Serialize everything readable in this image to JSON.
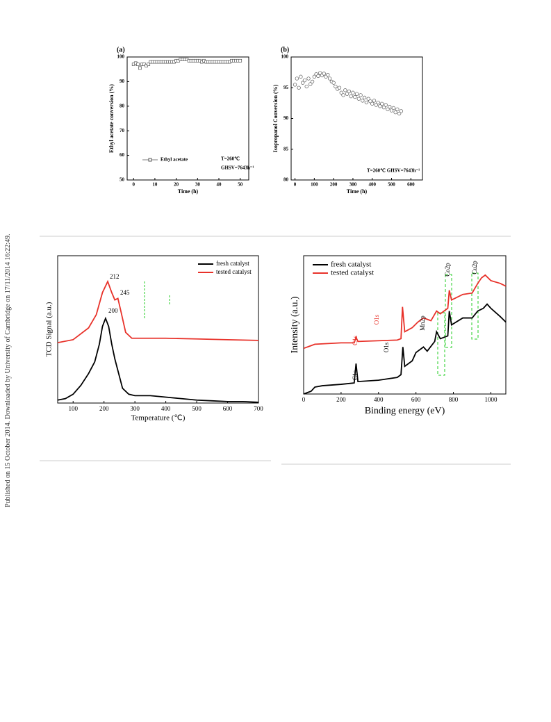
{
  "side_note": "Published on 15 October 2014. Downloaded by University of Cambridge on 17/11/2014 16:22:49.",
  "chart_data": [
    {
      "type": "line",
      "panel_label": "(a)",
      "x_label": "Time (h)",
      "y_label": "Ethyl acetate conversion (%)",
      "xlim": [
        -3,
        54
      ],
      "xticks": [
        0,
        10,
        20,
        30,
        40,
        50
      ],
      "ylim": [
        50,
        100
      ],
      "yticks": [
        50,
        60,
        70,
        80,
        90,
        100
      ],
      "marker": "square",
      "legend": "bottom-left",
      "annotations": [
        "T=260℃",
        "GHSV=7643h⁻¹"
      ],
      "series": [
        {
          "name": "Ethyl acetate",
          "color": "#555",
          "x": [
            0,
            1,
            2,
            3,
            4,
            5,
            6,
            7,
            8,
            9,
            10,
            11,
            12,
            13,
            14,
            15,
            16,
            17,
            18,
            19,
            20,
            21,
            22,
            23,
            24,
            25,
            26,
            27,
            28,
            29,
            30,
            31,
            32,
            33,
            34,
            35,
            36,
            37,
            38,
            39,
            40,
            41,
            42,
            43,
            44,
            45,
            46,
            47,
            48,
            49,
            50
          ],
          "values": [
            97,
            97.5,
            97,
            95.5,
            97,
            97,
            96.5,
            97,
            98,
            98,
            98,
            98,
            98,
            98,
            98,
            98,
            98,
            98,
            98,
            98,
            98.5,
            98.5,
            99,
            99,
            99,
            99,
            98.5,
            98.5,
            98.5,
            98.5,
            98.5,
            98.5,
            98,
            98.5,
            98,
            98,
            98,
            98,
            98,
            98,
            98,
            98,
            98,
            98,
            98,
            98,
            98.5,
            98.5,
            98.5,
            98.5,
            98.5
          ]
        }
      ]
    },
    {
      "type": "scatter",
      "panel_label": "(b)",
      "x_label": "Time (h)",
      "y_label": "Isopropanol Conversion (%)",
      "xlim": [
        -20,
        660
      ],
      "xticks": [
        0,
        100,
        200,
        300,
        400,
        500,
        600
      ],
      "ylim": [
        80,
        100
      ],
      "yticks": [
        80,
        85,
        90,
        95,
        100
      ],
      "marker": "circle",
      "annotations": [
        "T=260℃ GHSV=7643h⁻¹"
      ],
      "series": [
        {
          "color": "#555",
          "x": [
            0,
            10,
            20,
            30,
            40,
            50,
            60,
            70,
            80,
            90,
            100,
            110,
            120,
            130,
            140,
            150,
            160,
            170,
            180,
            190,
            200,
            210,
            220,
            230,
            240,
            250,
            260,
            270,
            280,
            290,
            300,
            310,
            320,
            330,
            340,
            350,
            360,
            370,
            380,
            390,
            400,
            410,
            420,
            430,
            440,
            450,
            460,
            470,
            480,
            490,
            500,
            510,
            520,
            530,
            540,
            550
          ],
          "values": [
            95.5,
            96.5,
            95,
            96.8,
            95.8,
            96.2,
            95.2,
            96.5,
            95.6,
            96.0,
            96.8,
            97.2,
            96.9,
            97.4,
            97.0,
            97.3,
            96.8,
            97.1,
            96.5,
            96.0,
            95.8,
            95.2,
            94.8,
            95.0,
            94.2,
            93.8,
            94.6,
            94.0,
            94.4,
            93.6,
            94.2,
            93.5,
            94.0,
            93.2,
            93.8,
            92.9,
            93.4,
            92.6,
            93.2,
            92.8,
            92.4,
            92.9,
            92.2,
            92.6,
            92.0,
            92.4,
            91.8,
            92.2,
            91.5,
            91.9,
            91.3,
            91.7,
            91.0,
            91.5,
            90.8,
            91.2
          ]
        }
      ]
    },
    {
      "type": "line",
      "x_label": "Temperature (℃)",
      "y_label": "TCD Signal (a.u.)",
      "xlim": [
        50,
        700
      ],
      "xticks": [
        100,
        200,
        300,
        400,
        500,
        600,
        700
      ],
      "ylim": [
        0,
        100
      ],
      "legend": "top-right",
      "annotations": [
        "212",
        "245",
        "200"
      ],
      "series": [
        {
          "name": "fresh catalyst",
          "color": "#000",
          "x": [
            50,
            75,
            100,
            125,
            150,
            170,
            185,
            195,
            205,
            215,
            225,
            235,
            245,
            260,
            280,
            300,
            350,
            400,
            450,
            500,
            550,
            600,
            650,
            700
          ],
          "values": [
            2,
            3,
            6,
            12,
            20,
            28,
            40,
            52,
            57.5,
            52,
            40,
            30,
            22,
            10,
            6,
            5,
            5,
            4,
            3,
            2,
            1.5,
            1,
            1,
            0.5
          ]
        },
        {
          "name": "tested catalyst",
          "color": "#e8322a",
          "x": [
            50,
            100,
            150,
            175,
            195,
            212,
            225,
            235,
            245,
            255,
            270,
            290,
            350,
            400,
            500,
            600,
            700
          ],
          "values": [
            41,
            43,
            51,
            60,
            75,
            82.5,
            75,
            70,
            71,
            62,
            48,
            44,
            44,
            44,
            43.5,
            43,
            42.5
          ]
        }
      ]
    },
    {
      "type": "line",
      "x_label": "Binding energy (eV)",
      "y_label": "Intensity (a.u.)",
      "xlim": [
        0,
        1080
      ],
      "xticks": [
        0,
        200,
        400,
        600,
        800,
        1000
      ],
      "ylim": [
        0,
        100
      ],
      "legend": "top-left",
      "annotations": [
        "C1s",
        "C1s",
        "O1s",
        "O1s",
        "Mn2p",
        "Co2p",
        "Cu2p"
      ],
      "series": [
        {
          "name": "fresh catalyst",
          "color": "#000",
          "x": [
            0,
            40,
            60,
            100,
            200,
            270,
            280,
            290,
            400,
            500,
            520,
            530,
            540,
            580,
            600,
            640,
            660,
            700,
            710,
            730,
            770,
            778,
            790,
            850,
            900,
            930,
            960,
            980,
            1000,
            1050,
            1080
          ],
          "values": [
            0,
            2,
            5,
            6,
            7,
            8,
            22,
            9,
            10,
            12,
            14,
            34,
            20,
            24,
            30,
            34,
            31,
            38,
            45,
            40,
            42,
            60,
            50,
            55,
            55,
            60,
            62,
            65,
            62,
            56,
            52
          ]
        },
        {
          "name": "tested catalyst",
          "color": "#e8322a",
          "x": [
            0,
            40,
            60,
            200,
            270,
            280,
            290,
            500,
            520,
            528,
            540,
            580,
            610,
            640,
            680,
            710,
            730,
            770,
            778,
            790,
            850,
            900,
            930,
            950,
            970,
            1000,
            1050,
            1080
          ],
          "values": [
            33,
            35,
            36,
            37,
            37,
            41,
            38,
            39,
            40,
            63,
            45,
            48,
            52,
            55,
            53,
            60,
            58,
            62,
            75,
            68,
            72,
            73,
            80,
            84,
            86,
            82,
            80,
            78
          ]
        }
      ]
    }
  ]
}
